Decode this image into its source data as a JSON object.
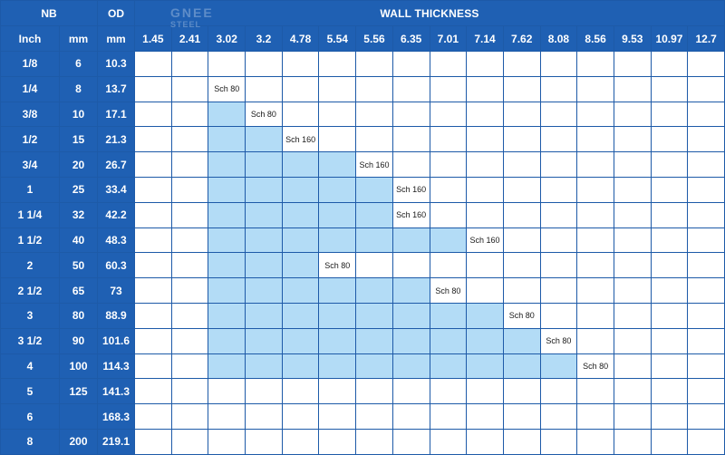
{
  "watermark": {
    "brand": "GNEE",
    "sub": "STEEL"
  },
  "headers": {
    "nb": "NB",
    "od": "OD",
    "wall": "WALL THICKNESS",
    "inch": "Inch",
    "mm_nb": "mm",
    "mm_od": "mm"
  },
  "thickness": [
    "1.45",
    "2.41",
    "3.02",
    "3.2",
    "4.78",
    "5.54",
    "5.56",
    "6.35",
    "7.01",
    "7.14",
    "7.62",
    "8.08",
    "8.56",
    "9.53",
    "10.97",
    "12.7"
  ],
  "rows": [
    {
      "inch": "1/8",
      "mm": "6",
      "od": "10.3",
      "fill": [],
      "label": null
    },
    {
      "inch": "1/4",
      "mm": "8",
      "od": "13.7",
      "fill": [],
      "label": {
        "col": 2,
        "text": "Sch 80"
      }
    },
    {
      "inch": "3/8",
      "mm": "10",
      "od": "17.1",
      "fill": [
        2,
        2
      ],
      "label": {
        "col": 3,
        "text": "Sch 80"
      }
    },
    {
      "inch": "1/2",
      "mm": "15",
      "od": "21.3",
      "fill": [
        2,
        3
      ],
      "label": {
        "col": 4,
        "text": "Sch 160"
      }
    },
    {
      "inch": "3/4",
      "mm": "20",
      "od": "26.7",
      "fill": [
        2,
        5
      ],
      "label": {
        "col": 6,
        "text": "Sch 160"
      }
    },
    {
      "inch": "1",
      "mm": "25",
      "od": "33.4",
      "fill": [
        2,
        6
      ],
      "label": {
        "col": 7,
        "text": "Sch 160"
      }
    },
    {
      "inch": "1 1/4",
      "mm": "32",
      "od": "42.2",
      "fill": [
        2,
        6
      ],
      "label": {
        "col": 7,
        "text": "Sch 160"
      }
    },
    {
      "inch": "1 1/2",
      "mm": "40",
      "od": "48.3",
      "fill": [
        2,
        8
      ],
      "label": {
        "col": 9,
        "text": "Sch 160"
      }
    },
    {
      "inch": "2",
      "mm": "50",
      "od": "60.3",
      "fill": [
        2,
        4
      ],
      "label": {
        "col": 5,
        "text": "Sch 80"
      }
    },
    {
      "inch": "2 1/2",
      "mm": "65",
      "od": "73",
      "fill": [
        2,
        7
      ],
      "label": {
        "col": 8,
        "text": "Sch 80"
      }
    },
    {
      "inch": "3",
      "mm": "80",
      "od": "88.9",
      "fill": [
        2,
        9
      ],
      "label": {
        "col": 10,
        "text": "Sch 80"
      }
    },
    {
      "inch": "3 1/2",
      "mm": "90",
      "od": "101.6",
      "fill": [
        2,
        10
      ],
      "label": {
        "col": 11,
        "text": "Sch 80"
      }
    },
    {
      "inch": "4",
      "mm": "100",
      "od": "114.3",
      "fill": [
        2,
        11
      ],
      "label": {
        "col": 12,
        "text": "Sch 80"
      }
    },
    {
      "inch": "5",
      "mm": "125",
      "od": "141.3",
      "fill": [],
      "label": null
    },
    {
      "inch": "6",
      "mm": "",
      "od": "168.3",
      "fill": [],
      "label": null
    },
    {
      "inch": "8",
      "mm": "200",
      "od": "219.1",
      "fill": [],
      "label": null
    }
  ]
}
